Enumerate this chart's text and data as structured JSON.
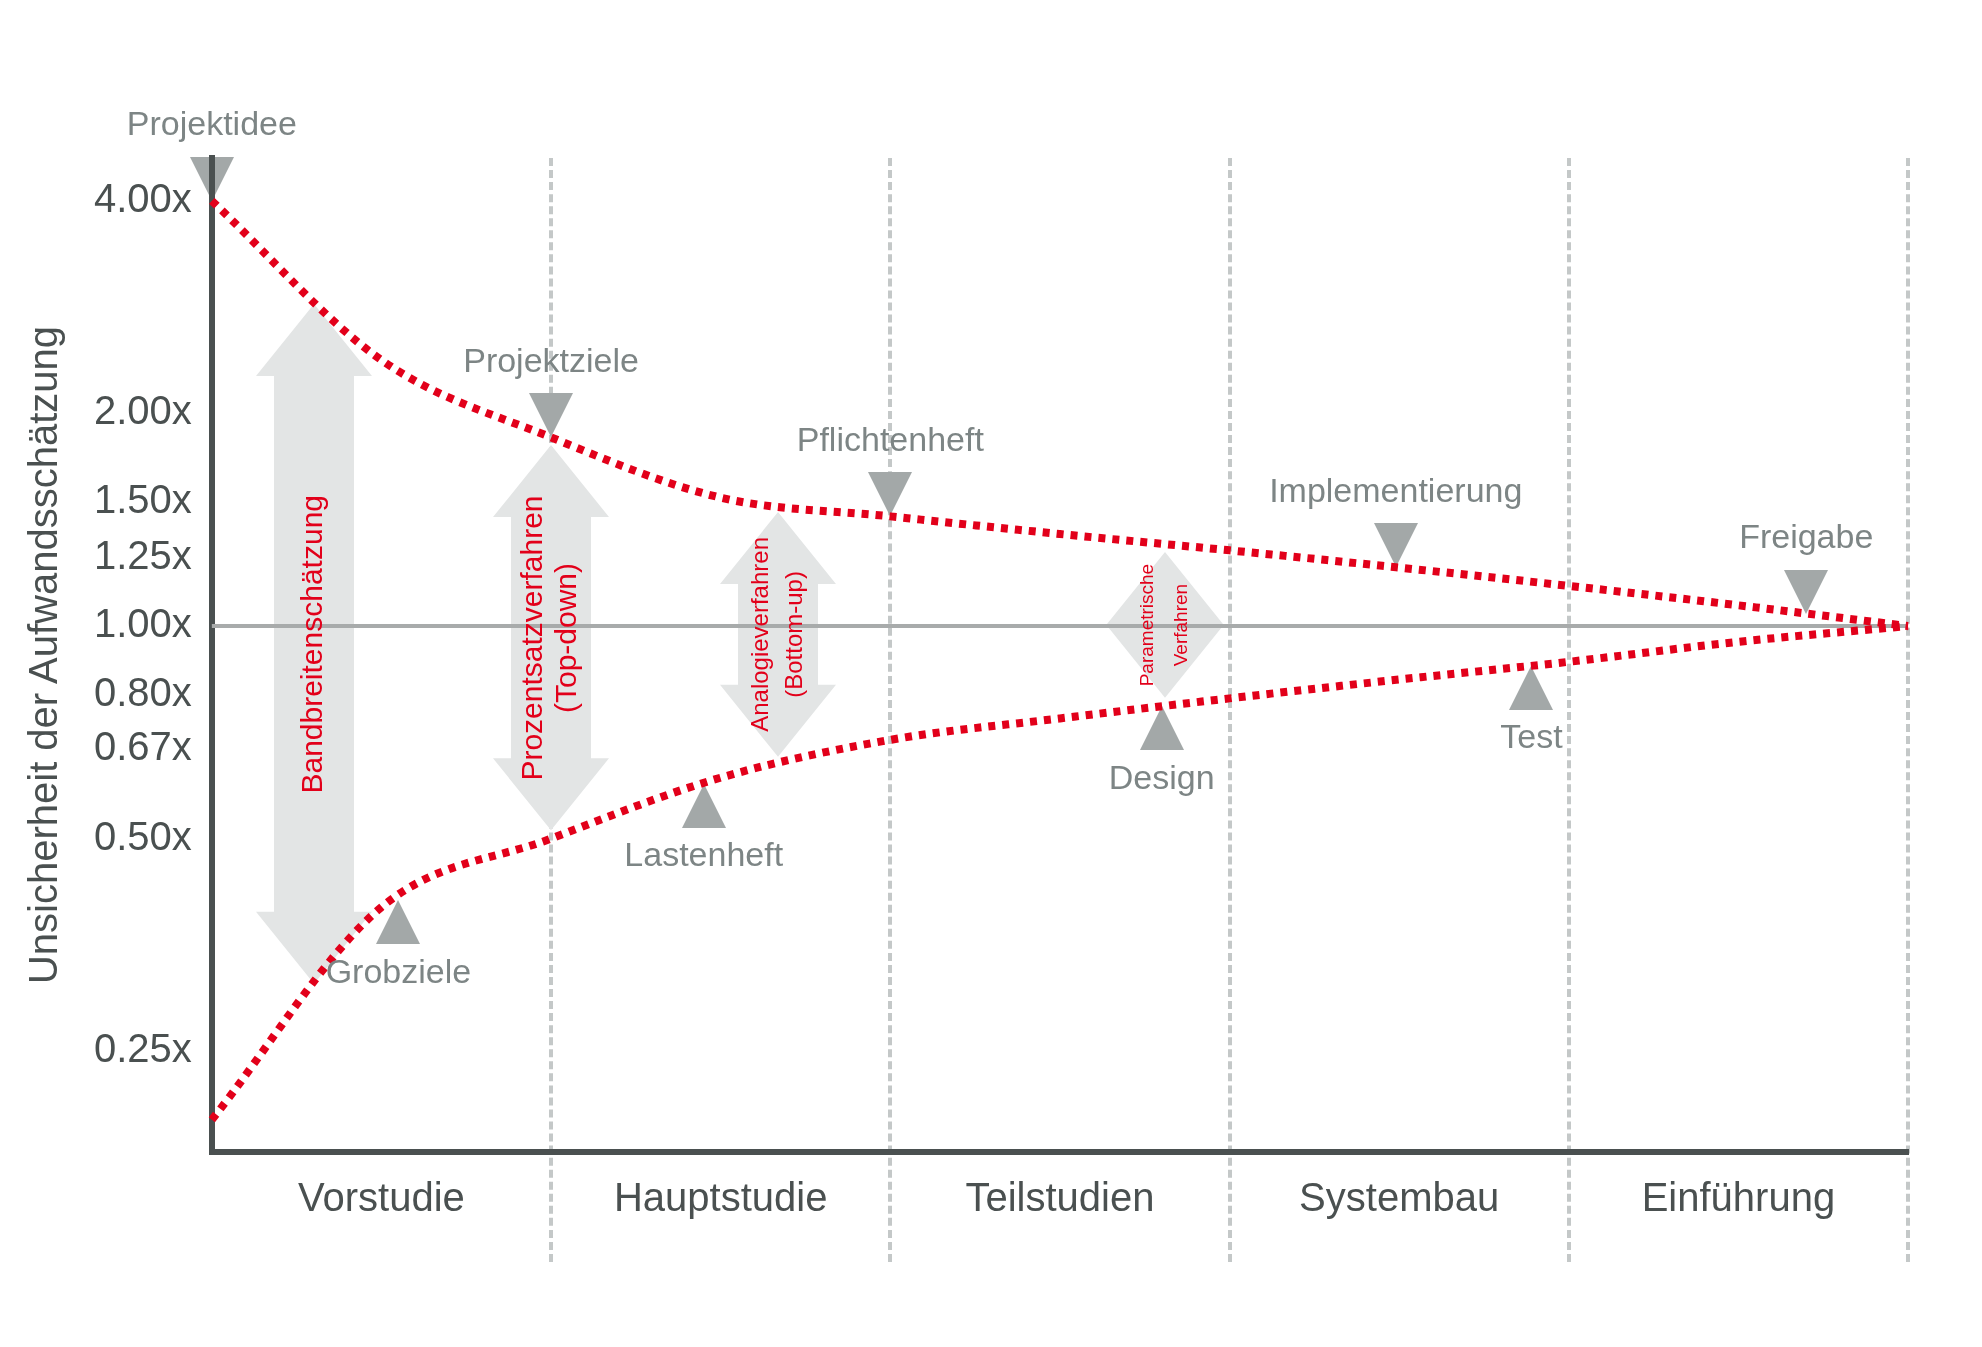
{
  "chart_data": {
    "type": "line",
    "ylabel": "Unsicherheit der Aufwandsschätzung",
    "log": "y",
    "line_style": "dotted",
    "marker": "none",
    "legend": false,
    "grid": "x",
    "categories": [
      null,
      "Vorstudie",
      null,
      "Hauptstudie",
      null,
      "Teilstudien",
      null,
      "Systembau",
      null,
      "Einführung",
      null
    ],
    "ylim": [
      0.18,
      4.6
    ],
    "yticks": [
      {
        "value": 0.25,
        "label": "0.25x"
      },
      {
        "value": 0.5,
        "label": "0.50x"
      },
      {
        "value": 0.67,
        "label": "0.67x"
      },
      {
        "value": 0.8,
        "label": "0.80x"
      },
      {
        "value": 1,
        "label": "1.00x"
      },
      {
        "value": 1.25,
        "label": "1.25x"
      },
      {
        "value": 1.5,
        "label": "1.50x"
      },
      {
        "value": 2,
        "label": "2.00x"
      },
      {
        "value": 4,
        "label": "4.00x"
      }
    ],
    "series": [
      {
        "color": "#e2001a",
        "values": [
          4.0,
          2.38,
          1.85,
          1.52,
          1.43,
          1.35,
          1.28,
          1.21,
          1.14,
          1.07,
          1.0
        ]
      },
      {
        "color": "#e2001a",
        "values": [
          0.2,
          0.4,
          0.5,
          0.61,
          0.69,
          0.74,
          0.79,
          0.84,
          0.89,
          0.95,
          1.0
        ]
      }
    ],
    "ref_lines": [
      {
        "axis": "y",
        "value": 1,
        "color": "#a8abab",
        "line_style": "solid"
      }
    ],
    "annotations": [
      "Projektidee",
      "Projektziele",
      "Pflichtenheft",
      "Implementierung",
      "Freigabe",
      "Grobziele",
      "Lastenheft",
      "Design",
      "Test",
      "Bandbreitenschätzung",
      "Prozentsatzverfahren\n(Top-down)",
      "Analogieverfahren\n(Bottom-up)",
      "Parametrische\nVerfahren"
    ]
  }
}
